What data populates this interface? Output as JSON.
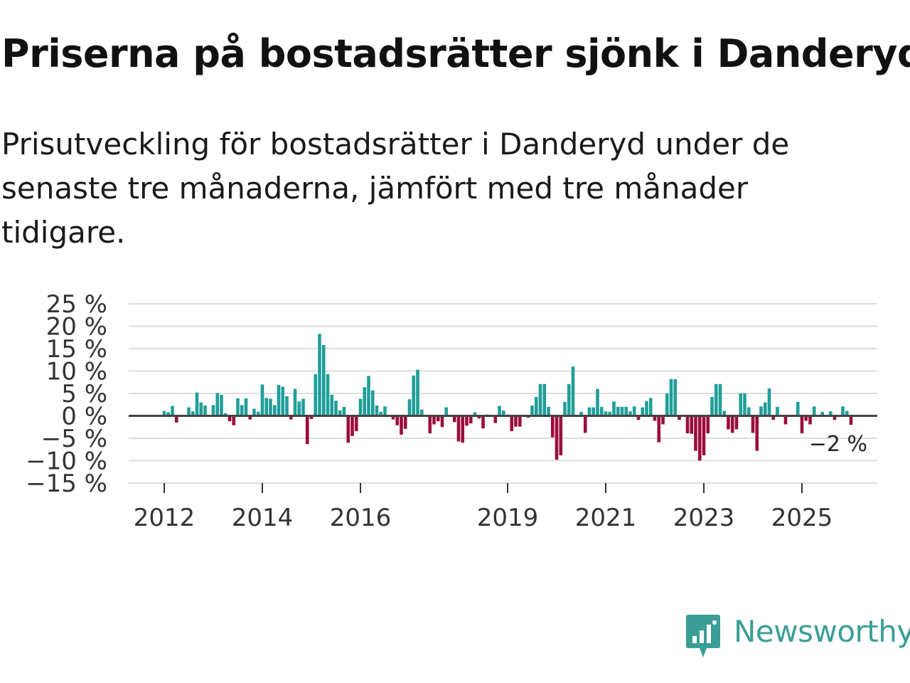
{
  "header": {
    "title": "Priserna på bostadsrätter sjönk i Danderyd",
    "subtitle": "Prisutveckling för bostadsrätter i Danderyd under de senaste tre månaderna, jämfört med tre månader tidigare."
  },
  "colors": {
    "positive": "#1f9e99",
    "negative": "#9b0c3e",
    "grid": "#dddddd",
    "zero_line": "#444444",
    "brand": "#3a9e96"
  },
  "chart_data": {
    "type": "bar",
    "title": "Priserna på bostadsrätter sjönk i Danderyd",
    "subtitle": "Prisutveckling för bostadsrätter i Danderyd under de senaste tre månaderna, jämfört med tre månader tidigare.",
    "xlabel": "",
    "ylabel": "",
    "ylim": [
      -15,
      25
    ],
    "grid": true,
    "legend": "none",
    "y_ticks": [
      25,
      20,
      15,
      10,
      5,
      0,
      -5,
      -10,
      -15
    ],
    "y_tick_labels": [
      "25 %",
      "20 %",
      "15 %",
      "10 %",
      "5 %",
      "0 %",
      "−5 %",
      "−10 %",
      "−15 %"
    ],
    "x_ticks": [
      2012,
      2014,
      2016,
      2019,
      2021,
      2023,
      2025
    ],
    "x_tick_labels": [
      "2012",
      "2014",
      "2016",
      "2019",
      "2021",
      "2023",
      "2025"
    ],
    "start": {
      "year": 2012,
      "month": 1
    },
    "series": [
      {
        "name": "Prisutveckling (%)",
        "unit": "%",
        "values": [
          1.1,
          0.8,
          2.2,
          -1.5,
          0,
          0,
          1.9,
          1.0,
          5.2,
          3.0,
          2.3,
          0,
          2.4,
          5.1,
          4.7,
          0.6,
          -1.2,
          -2.1,
          3.9,
          2.4,
          3.9,
          -0.8,
          1.6,
          0.9,
          7.0,
          4.0,
          3.8,
          2.4,
          6.9,
          6.5,
          4.4,
          -0.8,
          6.0,
          3.2,
          3.8,
          -6.3,
          -0.7,
          9.3,
          18.3,
          15.8,
          9.3,
          4.7,
          3.4,
          1.2,
          2.0,
          -6.0,
          -4.5,
          -3.4,
          3.8,
          6.4,
          8.9,
          5.7,
          2.3,
          0.9,
          2.1,
          0,
          -0.8,
          -2.1,
          -4.2,
          -2.9,
          3.7,
          9.0,
          10.3,
          1.4,
          0,
          -3.9,
          -1.9,
          -1.2,
          -2.5,
          1.9,
          0,
          -1.4,
          -5.7,
          -6.0,
          -2.2,
          -1.7,
          0.8,
          -0.6,
          -2.8,
          0.3,
          -0.2,
          -1.6,
          2.2,
          1.2,
          0.3,
          -3.4,
          -2.4,
          -2.4,
          0,
          -0.4,
          2.3,
          4.2,
          7.1,
          7.1,
          2.0,
          -4.8,
          -9.8,
          -8.8,
          3.1,
          7.1,
          11.0,
          0,
          0.9,
          -3.8,
          1.9,
          1.9,
          6.0,
          2.0,
          1.0,
          0.9,
          3.2,
          2.0,
          2.0,
          2.0,
          1.0,
          2.1,
          -0.9,
          1.9,
          3.3,
          4.0,
          -1.1,
          -5.9,
          -1.9,
          5.0,
          8.2,
          8.2,
          -0.9,
          0,
          -3.9,
          -4.0,
          -7.8,
          -10.0,
          -8.8,
          -3.9,
          4.2,
          7.1,
          7.1,
          1.1,
          -3.0,
          -3.8,
          -3.0,
          5.0,
          5.0,
          1.9,
          -3.8,
          -7.8,
          2.1,
          3.0,
          6.1,
          -0.9,
          2.0,
          0,
          -1.9,
          0,
          0,
          3.1,
          -3.9,
          -1.1,
          -1.9,
          2.1,
          0,
          0.9,
          0,
          1.0,
          -0.9,
          0,
          2.1,
          1.1,
          -2.0
        ]
      }
    ],
    "annotations": [
      {
        "text": "−2 %",
        "target": "last_bar"
      }
    ]
  },
  "brand": {
    "name": "Newsworthy",
    "logo_icon": "newsworthy-logo-icon"
  }
}
